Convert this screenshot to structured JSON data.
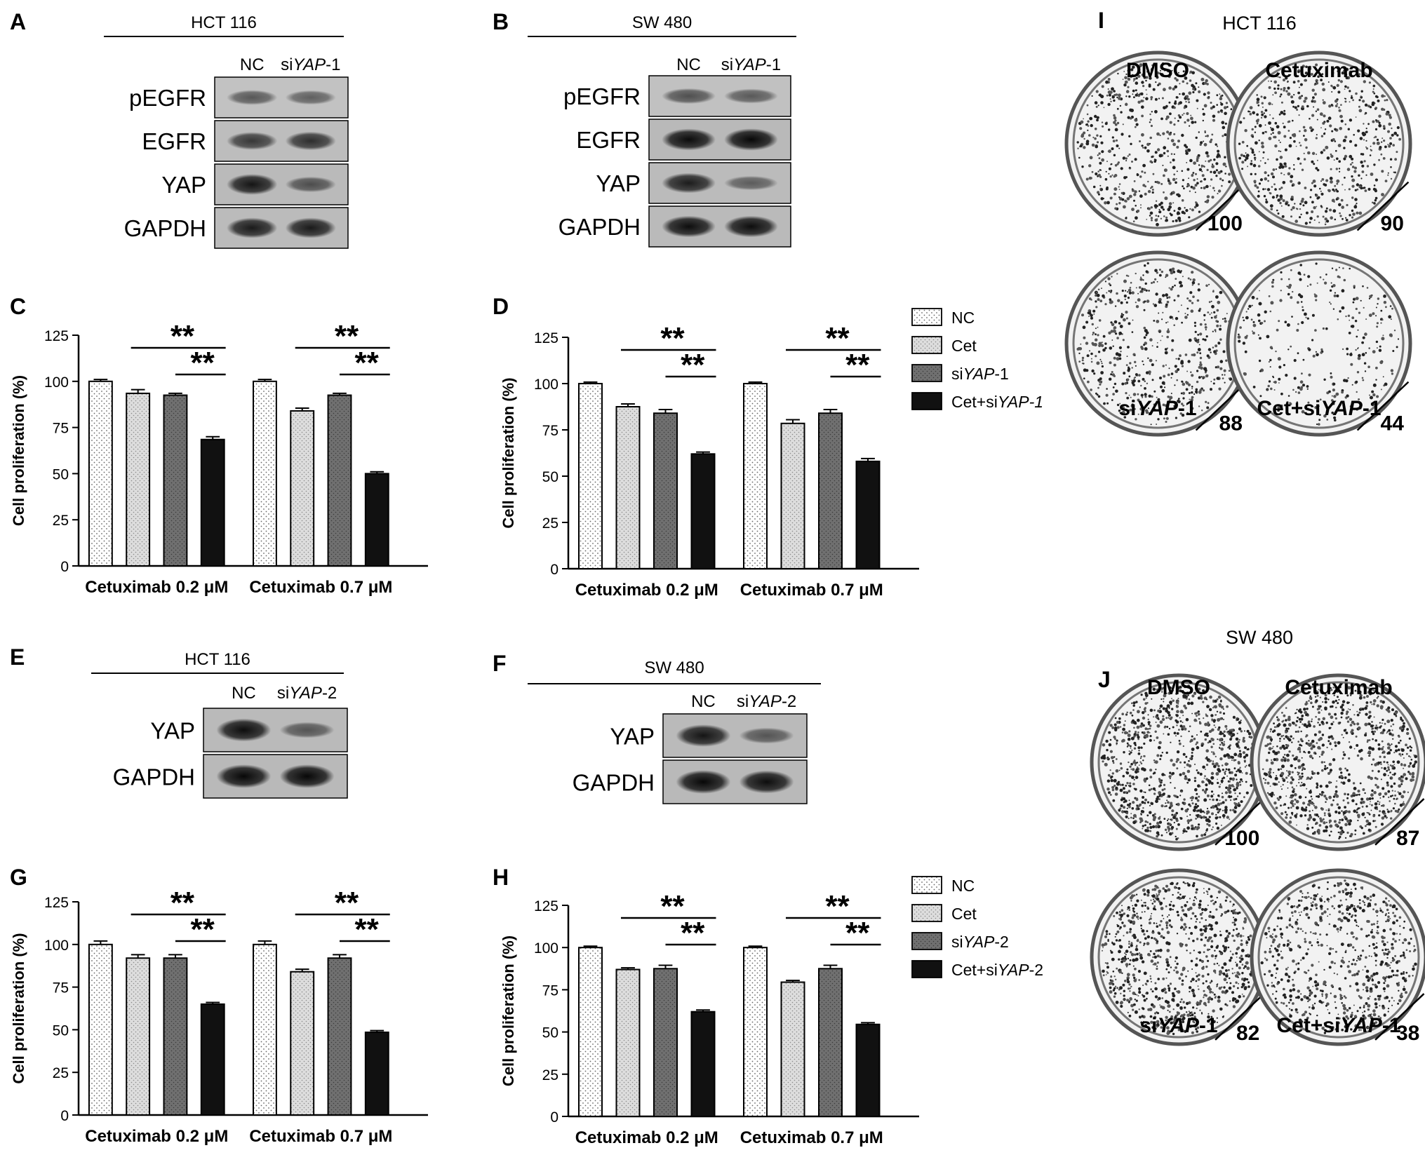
{
  "colors": {
    "nc": "#ffffff",
    "cet": "#dddddd",
    "si": "#707070",
    "combo": "#111111",
    "axis": "#000000"
  },
  "westerns": [
    {
      "letter": "A",
      "cell_line": "HCT 116",
      "lanes": [
        "NC"
      ],
      "lane_si": {
        "pre": "si",
        "it": "YAP",
        "post": "-1"
      },
      "bands": [
        {
          "label": "pEGFR",
          "i": [
            0.4,
            0.35
          ]
        },
        {
          "label": "EGFR",
          "i": [
            0.62,
            0.68
          ]
        },
        {
          "label": "YAP",
          "i": [
            0.85,
            0.45
          ]
        },
        {
          "label": "GAPDH",
          "i": [
            0.82,
            0.82
          ]
        }
      ]
    },
    {
      "letter": "B",
      "cell_line": "SW 480",
      "lanes": [
        "NC"
      ],
      "lane_si": {
        "pre": "si",
        "it": "YAP",
        "post": "-1"
      },
      "bands": [
        {
          "label": "pEGFR",
          "i": [
            0.45,
            0.38
          ]
        },
        {
          "label": "EGFR",
          "i": [
            0.92,
            0.95
          ]
        },
        {
          "label": "YAP",
          "i": [
            0.8,
            0.35
          ]
        },
        {
          "label": "GAPDH",
          "i": [
            0.9,
            0.9
          ]
        }
      ]
    },
    {
      "letter": "E",
      "cell_line": "HCT 116",
      "lanes": [
        "NC"
      ],
      "lane_si": {
        "pre": "si",
        "it": "YAP",
        "post": "-2"
      },
      "bands": [
        {
          "label": "YAP",
          "i": [
            0.9,
            0.4
          ]
        },
        {
          "label": "GAPDH",
          "i": [
            0.95,
            0.95
          ]
        }
      ]
    },
    {
      "letter": "F",
      "cell_line": "SW 480",
      "lanes": [
        "NC"
      ],
      "lane_si": {
        "pre": "si",
        "it": "YAP",
        "post": "-2"
      },
      "bands": [
        {
          "label": "YAP",
          "i": [
            0.85,
            0.4
          ]
        },
        {
          "label": "GAPDH",
          "i": [
            0.95,
            0.9
          ]
        }
      ]
    }
  ],
  "chart_data": [
    {
      "letter": "C",
      "type": "bar",
      "ylabel": "Cell proliferation (%)",
      "ylim": [
        0,
        125
      ],
      "yticks": [
        0,
        25,
        50,
        75,
        100,
        125
      ],
      "groups": [
        "Cetuximab 0.2 μM",
        "Cetuximab 0.7 μM"
      ],
      "values": [
        [
          100,
          93.5,
          92.5,
          68.5
        ],
        [
          100,
          84,
          92.5,
          50
        ]
      ],
      "errors": [
        [
          1,
          2,
          1,
          1.5
        ],
        [
          1,
          1.5,
          1,
          1
        ]
      ],
      "significance": "**",
      "legend": null
    },
    {
      "letter": "D",
      "type": "bar",
      "ylabel": "Cell proliferation (%)",
      "ylim": [
        0,
        125
      ],
      "yticks": [
        0,
        25,
        50,
        75,
        100,
        125
      ],
      "groups": [
        "Cetuximab 0.2 μM",
        "Cetuximab 0.7 μM"
      ],
      "values": [
        [
          100,
          87.5,
          84,
          62
        ],
        [
          100,
          78.5,
          84,
          58
        ]
      ],
      "errors": [
        [
          0.8,
          1.5,
          2,
          1
        ],
        [
          0.8,
          2,
          2,
          1.5
        ]
      ],
      "significance": "**",
      "legend": [
        {
          "pre": "NC",
          "it": "",
          "post": ""
        },
        {
          "pre": "Cet",
          "it": "",
          "post": ""
        },
        {
          "pre": "si",
          "it": "YAP",
          "post": "-1"
        },
        {
          "pre": "Cet+si",
          "it": "YAP-1",
          "post": ""
        }
      ]
    },
    {
      "letter": "G",
      "type": "bar",
      "ylabel": "Cell proliferation (%)",
      "ylim": [
        0,
        125
      ],
      "yticks": [
        0,
        25,
        50,
        75,
        100,
        125
      ],
      "groups": [
        "Cetuximab 0.2 μM",
        "Cetuximab 0.7 μM"
      ],
      "values": [
        [
          100,
          92,
          92,
          65
        ],
        [
          100,
          84,
          92,
          48.5
        ]
      ],
      "errors": [
        [
          2,
          2,
          2,
          1
        ],
        [
          2,
          1.5,
          2,
          1
        ]
      ],
      "significance": "**",
      "legend": null
    },
    {
      "letter": "H",
      "type": "bar",
      "ylabel": "Cell proliferation (%)",
      "ylim": [
        0,
        125
      ],
      "yticks": [
        0,
        25,
        50,
        75,
        100,
        125
      ],
      "groups": [
        "Cetuximab 0.2 μM",
        "Cetuximab 0.7 μM"
      ],
      "values": [
        [
          100,
          87,
          87.5,
          62
        ],
        [
          100,
          79.5,
          87.5,
          54.5
        ]
      ],
      "errors": [
        [
          0.8,
          1,
          2,
          1
        ],
        [
          0.8,
          1,
          2,
          1
        ]
      ],
      "significance": "**",
      "legend": [
        {
          "pre": "NC",
          "it": "",
          "post": ""
        },
        {
          "pre": "Cet",
          "it": "",
          "post": ""
        },
        {
          "pre": "si",
          "it": "YAP",
          "post": "-2"
        },
        {
          "pre": "Cet+si",
          "it": "YAP",
          "post": "-2"
        }
      ]
    }
  ],
  "colony_panels": [
    {
      "letter": "I",
      "cell_line": "HCT 116",
      "dishes": [
        {
          "top": "DMSO",
          "bottom": null,
          "value": "100",
          "density": 0.55
        },
        {
          "top": "Cetuximab",
          "bottom": null,
          "value": "90",
          "density": 0.5
        },
        {
          "top": null,
          "bottom": {
            "pre": "si",
            "it": "YAP",
            "post": "-1"
          },
          "value": "88",
          "density": 0.48
        },
        {
          "top": null,
          "bottom": {
            "pre": "Cet+si",
            "it": "YAP",
            "post": "-1"
          },
          "value": "44",
          "density": 0.25
        }
      ]
    },
    {
      "letter": "J",
      "cell_line": "SW 480",
      "dishes": [
        {
          "top": "DMSO",
          "bottom": null,
          "value": "100",
          "density": 0.8
        },
        {
          "top": "Cetuximab",
          "bottom": null,
          "value": "87",
          "density": 0.75
        },
        {
          "top": null,
          "bottom": {
            "pre": "si",
            "it": "YAP",
            "post": "-1"
          },
          "value": "82",
          "density": 0.72
        },
        {
          "top": null,
          "bottom": {
            "pre": "Cet+si",
            "it": "YAP",
            "post": "-1"
          },
          "value": "38",
          "density": 0.55
        }
      ]
    }
  ]
}
